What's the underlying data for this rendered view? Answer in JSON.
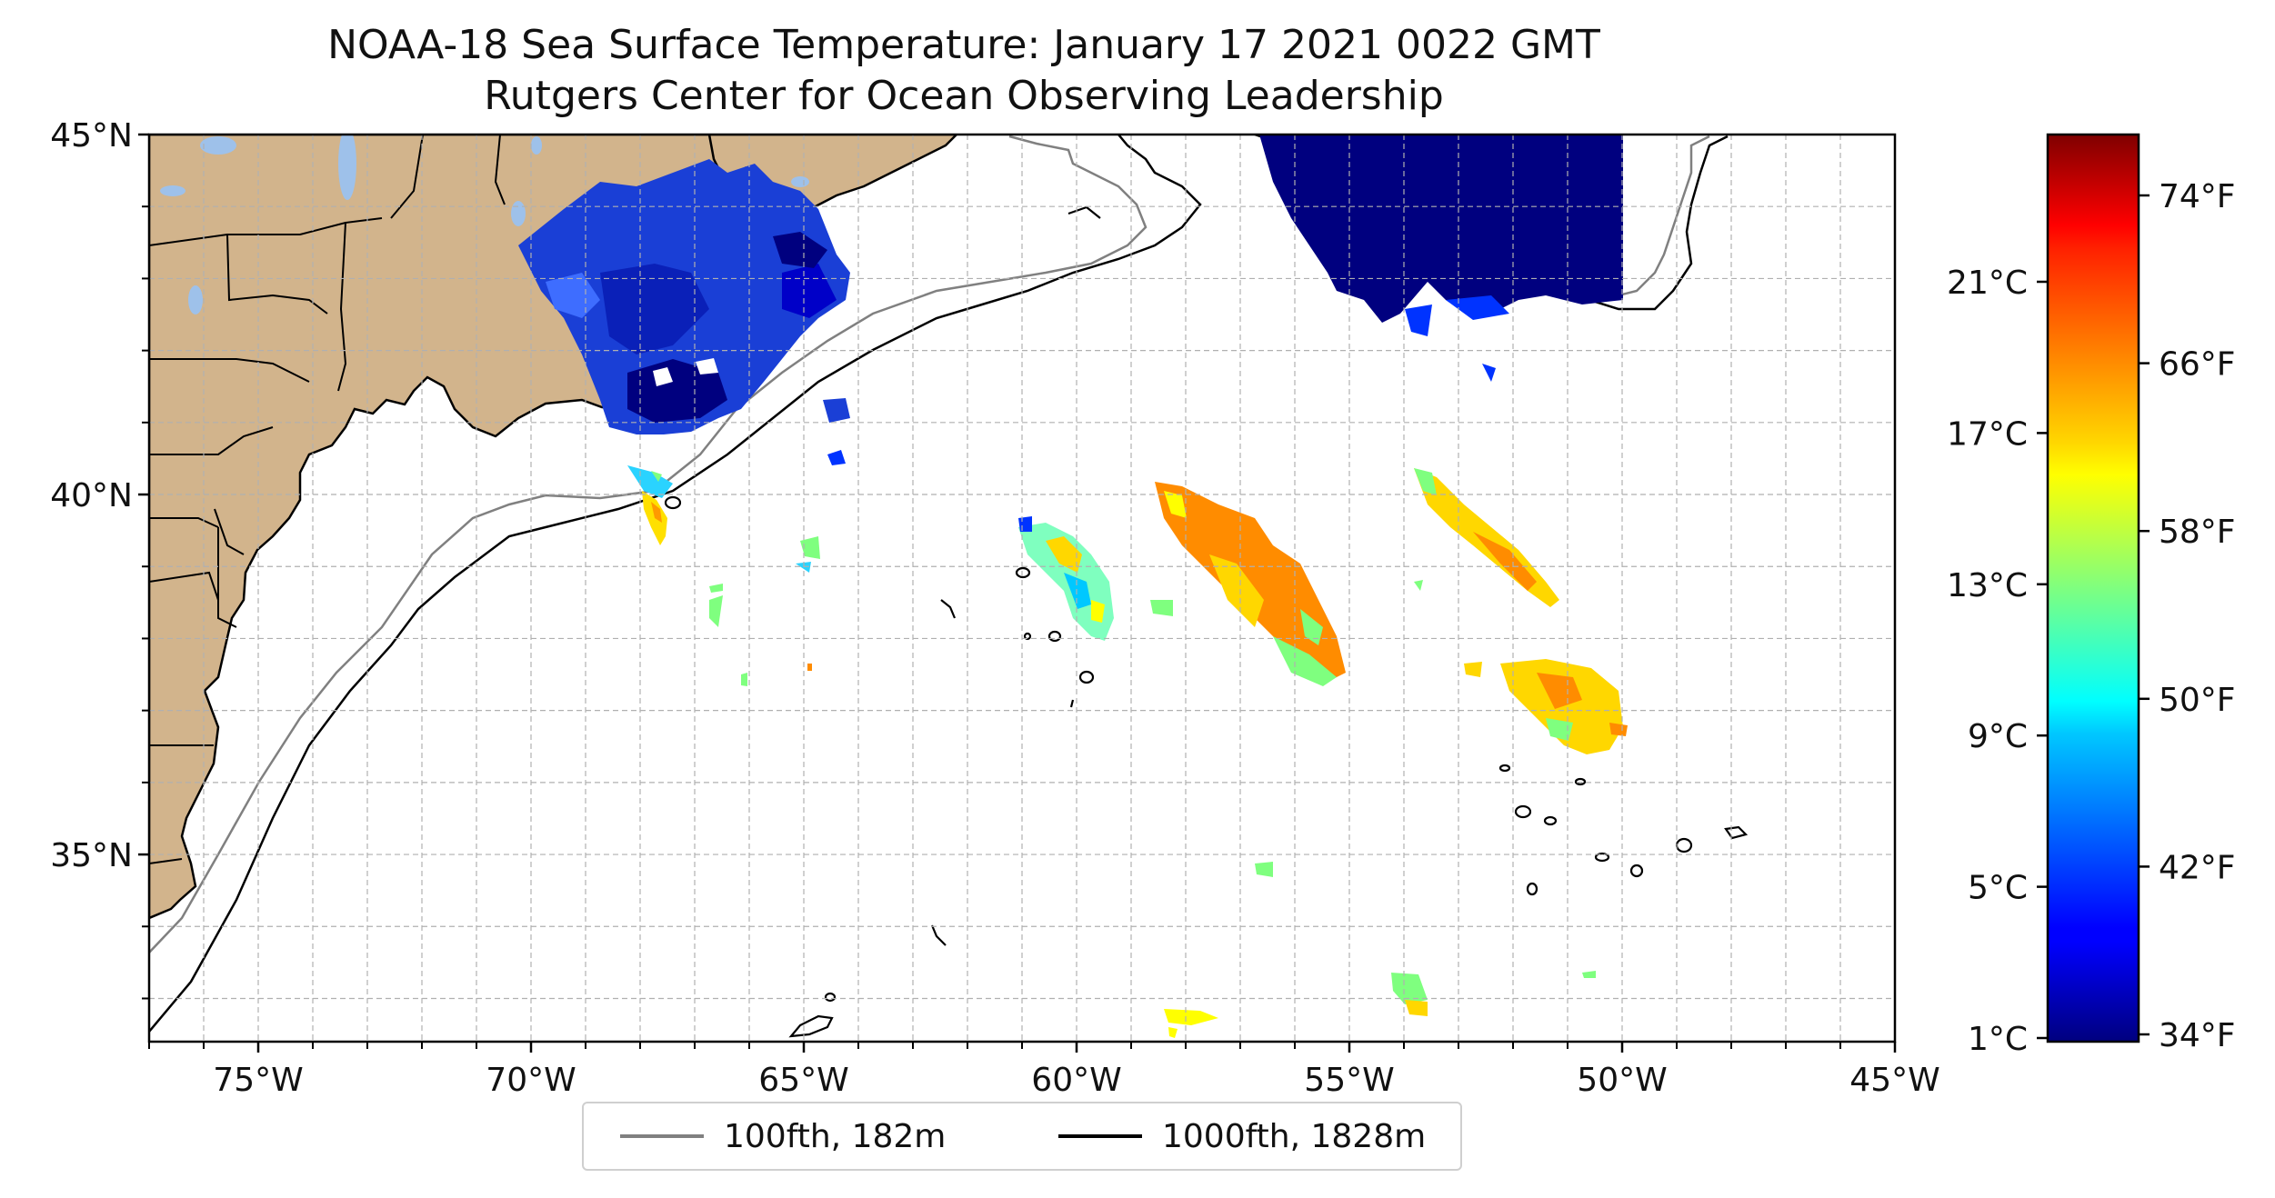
{
  "title": {
    "line1": "NOAA-18 Sea Surface Temperature: January 17 2021 0022 GMT",
    "line2": "Rutgers Center for Ocean Observing Leadership"
  },
  "map": {
    "lon_range": [
      -77,
      -45
    ],
    "lat_range": [
      32.4,
      45
    ],
    "lon_ticks": [
      {
        "value": -75,
        "label": "75°W"
      },
      {
        "value": -70,
        "label": "70°W"
      },
      {
        "value": -65,
        "label": "65°W"
      },
      {
        "value": -60,
        "label": "60°W"
      },
      {
        "value": -55,
        "label": "55°W"
      },
      {
        "value": -50,
        "label": "50°W"
      },
      {
        "value": -45,
        "label": "45°W"
      }
    ],
    "lat_ticks": [
      {
        "value": 45,
        "label": "45°N"
      },
      {
        "value": 40,
        "label": "40°N"
      },
      {
        "value": 35,
        "label": "35°N"
      }
    ],
    "gridlines": true,
    "land_color": "#d2b48c",
    "lake_color": "#9ec1ea"
  },
  "legend": {
    "items": [
      {
        "label": "100fth, 182m",
        "color": "#808080"
      },
      {
        "label": "1000fth, 1828m",
        "color": "#000000"
      }
    ]
  },
  "colorbar": {
    "colormap": "jet",
    "celsius_ticks": [
      "21°C",
      "17°C",
      "13°C",
      "9°C",
      "5°C",
      "1°C"
    ],
    "fahrenheit_ticks": [
      "74°F",
      "66°F",
      "58°F",
      "50°F",
      "42°F",
      "34°F"
    ]
  }
}
